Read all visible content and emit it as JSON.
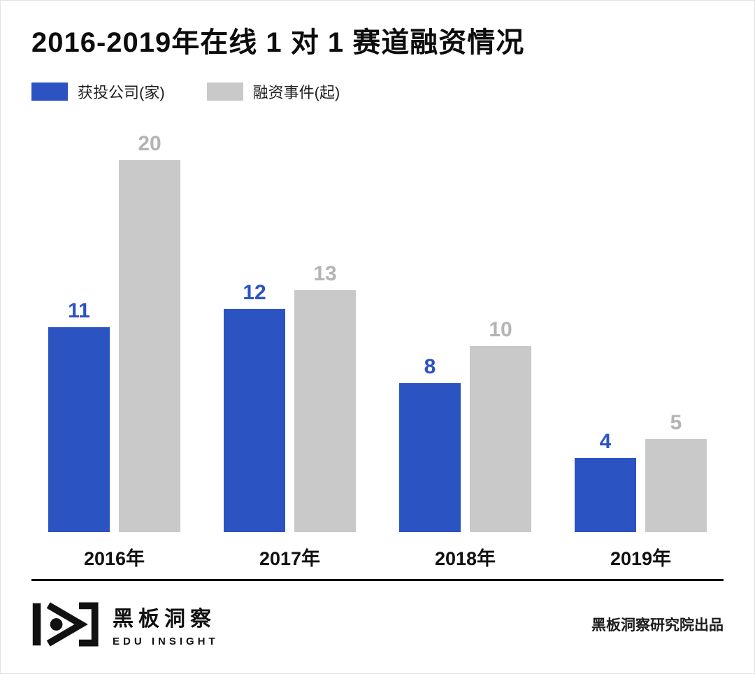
{
  "title": "2016-2019年在线 1 对 1 赛道融资情况",
  "legend": [
    {
      "label": "获投公司(家)",
      "color": "#2b53c2"
    },
    {
      "label": "融资事件(起)",
      "color": "#c9c9c9"
    }
  ],
  "chart_data": {
    "type": "bar",
    "title": "2016-2019年在线 1 对 1 赛道融资情况",
    "categories": [
      "2016年",
      "2017年",
      "2018年",
      "2019年"
    ],
    "series": [
      {
        "name": "获投公司(家)",
        "color": "#2b53c2",
        "label_color": "#2b53c2",
        "values": [
          11,
          12,
          8,
          4
        ]
      },
      {
        "name": "融资事件(起)",
        "color": "#c9c9c9",
        "label_color": "#b4b4b4",
        "values": [
          20,
          13,
          10,
          5
        ]
      }
    ],
    "xlabel": "",
    "ylabel": "",
    "ylim": [
      0,
      20
    ],
    "grid": false,
    "legend_position": "top-left",
    "value_labels": true
  },
  "footer": {
    "brand_name": "黑板洞察",
    "brand_subtitle": "EDU INSIGHT",
    "credit": "黑板洞察研究院出品"
  }
}
